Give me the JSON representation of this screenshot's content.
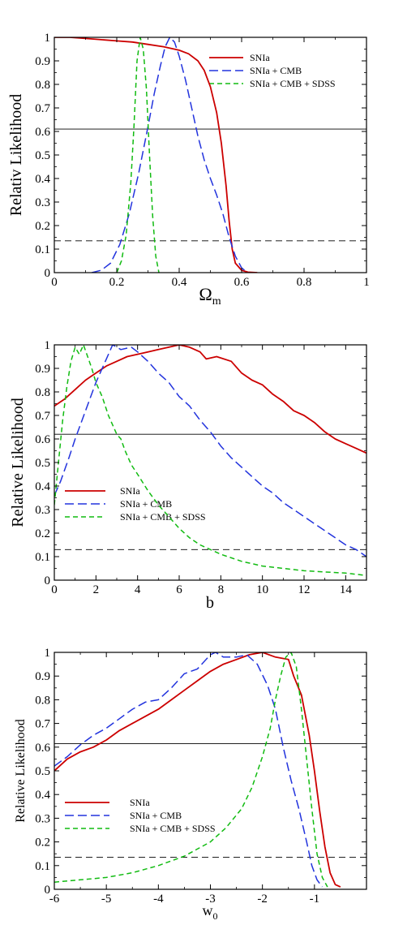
{
  "colors": {
    "snia": "#cc0000",
    "cmb": "#2233dd",
    "sdss": "#11bb11",
    "ref": "#000000"
  },
  "chart_data": [
    {
      "type": "line",
      "ylabel": "Relativ Likelihood",
      "xlabel_main": "Ω",
      "xlabel_sub": "m",
      "xlim": [
        0,
        1
      ],
      "ylim": [
        0,
        1
      ],
      "xticks": [
        0,
        0.2,
        0.4,
        0.6,
        0.8,
        1
      ],
      "xtick_labels": [
        "0",
        "0.2",
        "0.4",
        "0.6",
        "0.8",
        "1"
      ],
      "yticks": [
        0,
        0.1,
        0.2,
        0.3,
        0.4,
        0.5,
        0.6,
        0.7,
        0.8,
        0.9,
        1
      ],
      "ytick_labels": [
        "0",
        "0.1",
        "0.2",
        "0.3",
        "0.4",
        "0.5",
        "0.6",
        "0.7",
        "0.8",
        "0.9",
        "1"
      ],
      "ref_lines": {
        "solid": 0.61,
        "dashed": 0.135
      },
      "legend_position": "top-right",
      "series": [
        {
          "name": "SNIa",
          "color_key": "snia",
          "dash": "solid",
          "points": [
            [
              0,
              1
            ],
            [
              0.05,
              1.0
            ],
            [
              0.1,
              0.995
            ],
            [
              0.15,
              0.99
            ],
            [
              0.2,
              0.985
            ],
            [
              0.25,
              0.98
            ],
            [
              0.3,
              0.97
            ],
            [
              0.35,
              0.96
            ],
            [
              0.4,
              0.945
            ],
            [
              0.43,
              0.93
            ],
            [
              0.46,
              0.9
            ],
            [
              0.48,
              0.86
            ],
            [
              0.5,
              0.79
            ],
            [
              0.52,
              0.68
            ],
            [
              0.535,
              0.55
            ],
            [
              0.55,
              0.37
            ],
            [
              0.56,
              0.22
            ],
            [
              0.57,
              0.1
            ],
            [
              0.58,
              0.04
            ],
            [
              0.6,
              0.01
            ],
            [
              0.62,
              0.002
            ],
            [
              0.65,
              0
            ]
          ]
        },
        {
          "name": "SNIa + CMB",
          "color_key": "cmb",
          "dash": "long",
          "points": [
            [
              0.12,
              0
            ],
            [
              0.15,
              0.01
            ],
            [
              0.18,
              0.04
            ],
            [
              0.21,
              0.12
            ],
            [
              0.24,
              0.25
            ],
            [
              0.27,
              0.42
            ],
            [
              0.3,
              0.62
            ],
            [
              0.32,
              0.76
            ],
            [
              0.34,
              0.88
            ],
            [
              0.355,
              0.96
            ],
            [
              0.37,
              1.0
            ],
            [
              0.385,
              0.98
            ],
            [
              0.4,
              0.92
            ],
            [
              0.42,
              0.82
            ],
            [
              0.44,
              0.7
            ],
            [
              0.46,
              0.58
            ],
            [
              0.48,
              0.48
            ],
            [
              0.5,
              0.4
            ],
            [
              0.52,
              0.33
            ],
            [
              0.54,
              0.25
            ],
            [
              0.56,
              0.15
            ],
            [
              0.58,
              0.07
            ],
            [
              0.6,
              0.02
            ],
            [
              0.62,
              0
            ]
          ]
        },
        {
          "name": "SNIa + CMB + SDSS",
          "color_key": "sdss",
          "dash": "short",
          "points": [
            [
              0.2,
              0
            ],
            [
              0.215,
              0.05
            ],
            [
              0.23,
              0.16
            ],
            [
              0.245,
              0.38
            ],
            [
              0.255,
              0.62
            ],
            [
              0.265,
              0.9
            ],
            [
              0.275,
              1.0
            ],
            [
              0.285,
              0.95
            ],
            [
              0.295,
              0.78
            ],
            [
              0.305,
              0.5
            ],
            [
              0.315,
              0.24
            ],
            [
              0.325,
              0.07
            ],
            [
              0.335,
              0
            ]
          ]
        }
      ]
    },
    {
      "type": "line",
      "ylabel": "Relative Likelihood",
      "xlabel_main": "b",
      "xlabel_sub": "",
      "xlim": [
        0,
        15
      ],
      "ylim": [
        0,
        1
      ],
      "xticks": [
        0,
        2,
        4,
        6,
        8,
        10,
        12,
        14
      ],
      "xtick_labels": [
        "0",
        "2",
        "4",
        "6",
        "8",
        "10",
        "12",
        "14"
      ],
      "yticks": [
        0,
        0.1,
        0.2,
        0.3,
        0.4,
        0.5,
        0.6,
        0.7,
        0.8,
        0.9,
        1
      ],
      "ytick_labels": [
        "0",
        "0.1",
        "0.2",
        "0.3",
        "0.4",
        "0.5",
        "0.6",
        "0.7",
        "0.8",
        "0.9",
        "1"
      ],
      "ref_lines": {
        "solid": 0.62,
        "dashed": 0.13
      },
      "legend_position": "lower-left",
      "series": [
        {
          "name": "SNIa",
          "color_key": "snia",
          "dash": "solid",
          "points": [
            [
              0,
              0.74
            ],
            [
              0.5,
              0.77
            ],
            [
              1,
              0.81
            ],
            [
              1.5,
              0.85
            ],
            [
              2,
              0.88
            ],
            [
              2.5,
              0.91
            ],
            [
              3,
              0.93
            ],
            [
              3.5,
              0.95
            ],
            [
              4,
              0.96
            ],
            [
              4.5,
              0.97
            ],
            [
              5,
              0.98
            ],
            [
              5.5,
              0.99
            ],
            [
              6,
              1.0
            ],
            [
              6.5,
              0.99
            ],
            [
              7,
              0.97
            ],
            [
              7.3,
              0.94
            ],
            [
              7.8,
              0.95
            ],
            [
              8.5,
              0.93
            ],
            [
              9,
              0.88
            ],
            [
              9.5,
              0.85
            ],
            [
              10,
              0.83
            ],
            [
              10.5,
              0.79
            ],
            [
              11,
              0.76
            ],
            [
              11.5,
              0.72
            ],
            [
              12,
              0.7
            ],
            [
              12.5,
              0.67
            ],
            [
              13,
              0.63
            ],
            [
              13.5,
              0.6
            ],
            [
              14,
              0.58
            ],
            [
              14.5,
              0.56
            ],
            [
              15,
              0.54
            ]
          ]
        },
        {
          "name": "SNIa + CMB",
          "color_key": "cmb",
          "dash": "long",
          "points": [
            [
              0,
              0.36
            ],
            [
              0.3,
              0.42
            ],
            [
              0.7,
              0.52
            ],
            [
              1,
              0.6
            ],
            [
              1.5,
              0.72
            ],
            [
              2,
              0.84
            ],
            [
              2.5,
              0.94
            ],
            [
              2.8,
              1.0
            ],
            [
              3.2,
              0.98
            ],
            [
              3.7,
              0.99
            ],
            [
              4,
              0.97
            ],
            [
              4.5,
              0.93
            ],
            [
              5,
              0.88
            ],
            [
              5.5,
              0.84
            ],
            [
              6,
              0.78
            ],
            [
              6.5,
              0.74
            ],
            [
              7,
              0.68
            ],
            [
              7.5,
              0.63
            ],
            [
              8,
              0.57
            ],
            [
              8.5,
              0.52
            ],
            [
              9,
              0.48
            ],
            [
              9.5,
              0.44
            ],
            [
              10,
              0.4
            ],
            [
              10.5,
              0.37
            ],
            [
              11,
              0.33
            ],
            [
              11.5,
              0.3
            ],
            [
              12,
              0.27
            ],
            [
              12.5,
              0.24
            ],
            [
              13,
              0.21
            ],
            [
              13.5,
              0.18
            ],
            [
              14,
              0.15
            ],
            [
              14.5,
              0.13
            ],
            [
              15,
              0.1
            ]
          ]
        },
        {
          "name": "SNIa + CMB + SDSS",
          "color_key": "sdss",
          "dash": "short",
          "points": [
            [
              0,
              0.32
            ],
            [
              0.2,
              0.5
            ],
            [
              0.4,
              0.68
            ],
            [
              0.6,
              0.82
            ],
            [
              0.8,
              0.93
            ],
            [
              1,
              0.99
            ],
            [
              1.2,
              0.96
            ],
            [
              1.4,
              1.0
            ],
            [
              1.6,
              0.95
            ],
            [
              1.8,
              0.9
            ],
            [
              2,
              0.84
            ],
            [
              2.3,
              0.78
            ],
            [
              2.6,
              0.7
            ],
            [
              3,
              0.62
            ],
            [
              3.2,
              0.6
            ],
            [
              3.4,
              0.55
            ],
            [
              3.7,
              0.49
            ],
            [
              4,
              0.45
            ],
            [
              4.5,
              0.38
            ],
            [
              5,
              0.32
            ],
            [
              5.5,
              0.27
            ],
            [
              6,
              0.22
            ],
            [
              6.5,
              0.18
            ],
            [
              7,
              0.15
            ],
            [
              7.5,
              0.13
            ],
            [
              8,
              0.11
            ],
            [
              9,
              0.08
            ],
            [
              10,
              0.06
            ],
            [
              11,
              0.05
            ],
            [
              12,
              0.04
            ],
            [
              13,
              0.035
            ],
            [
              14,
              0.03
            ],
            [
              15,
              0.02
            ]
          ]
        }
      ]
    },
    {
      "type": "line",
      "ylabel": "Relative Likelihood",
      "xlabel_main": "w",
      "xlabel_sub": "0",
      "xlim": [
        -6,
        0
      ],
      "ylim": [
        0,
        1
      ],
      "xticks": [
        -6,
        -5,
        -4,
        -3,
        -2,
        -1
      ],
      "xtick_labels": [
        "-6",
        "-5",
        "-4",
        "-3",
        "-2",
        "-1"
      ],
      "yticks": [
        0,
        0.1,
        0.2,
        0.3,
        0.4,
        0.5,
        0.6,
        0.7,
        0.8,
        0.9,
        1
      ],
      "ytick_labels": [
        "0",
        "0.1",
        "0.2",
        "0.3",
        "0.4",
        "0.5",
        "0.6",
        "0.7",
        "0.8",
        "0.9",
        "1"
      ],
      "ref_lines": {
        "solid": 0.615,
        "dashed": 0.135
      },
      "legend_position": "lower-left",
      "series": [
        {
          "name": "SNIa",
          "color_key": "snia",
          "dash": "solid",
          "points": [
            [
              -6,
              0.5
            ],
            [
              -5.75,
              0.55
            ],
            [
              -5.5,
              0.58
            ],
            [
              -5.25,
              0.6
            ],
            [
              -5,
              0.63
            ],
            [
              -4.75,
              0.67
            ],
            [
              -4.5,
              0.7
            ],
            [
              -4.25,
              0.73
            ],
            [
              -4,
              0.76
            ],
            [
              -3.75,
              0.8
            ],
            [
              -3.5,
              0.84
            ],
            [
              -3.25,
              0.88
            ],
            [
              -3,
              0.92
            ],
            [
              -2.75,
              0.95
            ],
            [
              -2.5,
              0.97
            ],
            [
              -2.25,
              0.99
            ],
            [
              -2,
              1.0
            ],
            [
              -1.75,
              0.98
            ],
            [
              -1.5,
              0.97
            ],
            [
              -1.4,
              0.9
            ],
            [
              -1.25,
              0.82
            ],
            [
              -1.1,
              0.65
            ],
            [
              -1,
              0.5
            ],
            [
              -0.9,
              0.33
            ],
            [
              -0.8,
              0.18
            ],
            [
              -0.7,
              0.07
            ],
            [
              -0.6,
              0.02
            ],
            [
              -0.5,
              0.01
            ]
          ]
        },
        {
          "name": "SNIa + CMB",
          "color_key": "cmb",
          "dash": "long",
          "points": [
            [
              -6,
              0.52
            ],
            [
              -5.75,
              0.56
            ],
            [
              -5.5,
              0.61
            ],
            [
              -5.25,
              0.65
            ],
            [
              -5,
              0.68
            ],
            [
              -4.75,
              0.72
            ],
            [
              -4.5,
              0.76
            ],
            [
              -4.25,
              0.79
            ],
            [
              -4,
              0.8
            ],
            [
              -3.75,
              0.85
            ],
            [
              -3.5,
              0.91
            ],
            [
              -3.25,
              0.93
            ],
            [
              -3,
              0.99
            ],
            [
              -2.9,
              1.0
            ],
            [
              -2.75,
              0.98
            ],
            [
              -2.5,
              0.98
            ],
            [
              -2.3,
              0.99
            ],
            [
              -2.1,
              0.95
            ],
            [
              -1.9,
              0.86
            ],
            [
              -1.75,
              0.76
            ],
            [
              -1.6,
              0.6
            ],
            [
              -1.45,
              0.46
            ],
            [
              -1.3,
              0.34
            ],
            [
              -1.15,
              0.2
            ],
            [
              -1.05,
              0.1
            ],
            [
              -0.95,
              0.04
            ],
            [
              -0.85,
              0.01
            ]
          ]
        },
        {
          "name": "SNIa + CMB + SDSS",
          "color_key": "sdss",
          "dash": "short",
          "points": [
            [
              -6,
              0.03
            ],
            [
              -5.5,
              0.04
            ],
            [
              -5,
              0.05
            ],
            [
              -4.5,
              0.07
            ],
            [
              -4,
              0.1
            ],
            [
              -3.5,
              0.14
            ],
            [
              -3,
              0.2
            ],
            [
              -2.7,
              0.26
            ],
            [
              -2.4,
              0.34
            ],
            [
              -2.2,
              0.43
            ],
            [
              -2,
              0.56
            ],
            [
              -1.85,
              0.68
            ],
            [
              -1.75,
              0.8
            ],
            [
              -1.65,
              0.9
            ],
            [
              -1.55,
              0.98
            ],
            [
              -1.45,
              1.0
            ],
            [
              -1.35,
              0.94
            ],
            [
              -1.25,
              0.76
            ],
            [
              -1.15,
              0.55
            ],
            [
              -1.05,
              0.34
            ],
            [
              -0.95,
              0.15
            ],
            [
              -0.85,
              0.05
            ],
            [
              -0.75,
              0.01
            ]
          ]
        }
      ]
    }
  ]
}
